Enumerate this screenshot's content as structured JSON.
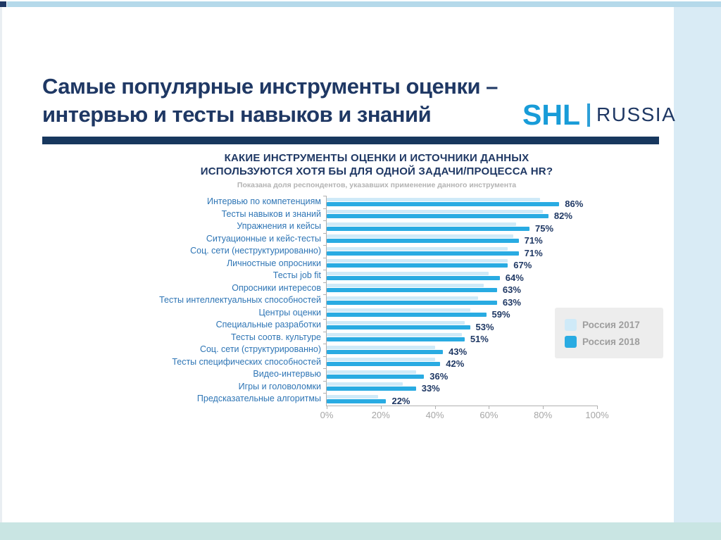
{
  "slide": {
    "title_line1": "Самые популярные инструменты оценки –",
    "title_line2": "интервью и тесты навыков и знаний",
    "logo": {
      "brand": "SHL",
      "region": "RUSSIA"
    }
  },
  "chart_data": {
    "type": "bar",
    "orientation": "horizontal",
    "title_line1": "КАКИЕ ИНСТРУМЕНТЫ ОЦЕНКИ И ИСТОЧНИКИ ДАННЫХ",
    "title_line2": "ИСПОЛЬЗУЮТСЯ ХОТЯ БЫ ДЛЯ ОДНОЙ ЗАДАЧИ/ПРОЦЕССА HR?",
    "subtitle": "Показана доля респондентов, указавших применение данного инструмента",
    "categories": [
      "Интервью по компетенциям",
      "Тесты навыков и знаний",
      "Упражнения и кейсы",
      "Ситуационные и кейс-тесты",
      "Соц. сети (неструктурированно)",
      "Личностные опросники",
      "Тесты job fit",
      "Опросники интересов",
      "Тесты интеллектуальных способностей",
      "Центры оценки",
      "Специальные разработки",
      "Тесты соотв. культуре",
      "Соц. сети (структурированно)",
      "Тесты специфических способностей",
      "Видео-интервью",
      "Игры и головоломки",
      "Предсказательные алгоритмы"
    ],
    "series": [
      {
        "name": "Россия 2017",
        "color": "#cfeaf8",
        "data_labels_shown": false,
        "values": [
          79,
          80,
          70,
          69,
          67,
          67,
          60,
          58,
          56,
          53,
          51,
          50,
          40,
          40,
          33,
          28,
          19
        ]
      },
      {
        "name": "Россия 2018",
        "color": "#29abe2",
        "data_labels_shown": true,
        "values": [
          86,
          82,
          75,
          71,
          71,
          67,
          64,
          63,
          63,
          59,
          53,
          51,
          43,
          42,
          36,
          33,
          22
        ]
      }
    ],
    "data_labels": [
      "86%",
      "82%",
      "75%",
      "71%",
      "71%",
      "67%",
      "64%",
      "63%",
      "63%",
      "59%",
      "53%",
      "51%",
      "43%",
      "42%",
      "36%",
      "33%",
      "22%"
    ],
    "xticks": [
      "0%",
      "20%",
      "40%",
      "60%",
      "80%",
      "100%"
    ],
    "xlim": [
      0,
      100
    ],
    "grid": false,
    "legend_position": "right"
  },
  "colors": {
    "title_navy": "#1f3864",
    "rule_navy": "#17375e",
    "brand_blue": "#189cd8",
    "bar_2017": "#cfeaf8",
    "bar_2018": "#29abe2",
    "category_label_blue": "#2e75b5",
    "axis_gray": "#a6a6a6",
    "legend_bg": "#ededed",
    "frame_top_blue": "#b5d9ea",
    "frame_right_blue": "#d9ebf5",
    "frame_bottom_teal": "#c9e5e3"
  }
}
